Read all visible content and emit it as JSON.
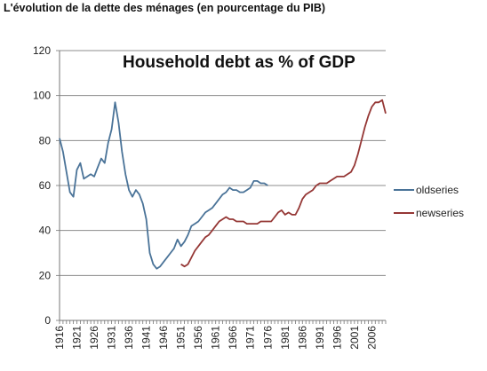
{
  "caption": "L'évolution de la dette des ménages (en pourcentage du PIB)",
  "colors": {
    "oldseries": "#4a7398",
    "newseries": "#953735",
    "grid": "#8c8c8c",
    "axis": "#777777"
  },
  "chart_data": {
    "type": "line",
    "title": "Household debt as % of GDP",
    "xlabel": "",
    "ylabel": "",
    "xlim": [
      1916,
      2010
    ],
    "ylim": [
      0,
      120
    ],
    "yticks": [
      0,
      20,
      40,
      60,
      80,
      100,
      120
    ],
    "xticks": [
      1916,
      1921,
      1926,
      1931,
      1936,
      1941,
      1946,
      1951,
      1956,
      1961,
      1966,
      1971,
      1976,
      1981,
      1986,
      1991,
      1996,
      2001,
      2006
    ],
    "grid": "horizontal",
    "legend": "right",
    "series": [
      {
        "name": "oldseries",
        "x": [
          1916,
          1917,
          1918,
          1919,
          1920,
          1921,
          1922,
          1923,
          1924,
          1925,
          1926,
          1927,
          1928,
          1929,
          1930,
          1931,
          1932,
          1933,
          1934,
          1935,
          1936,
          1937,
          1938,
          1939,
          1940,
          1941,
          1942,
          1943,
          1944,
          1945,
          1946,
          1947,
          1948,
          1949,
          1950,
          1951,
          1952,
          1953,
          1954,
          1955,
          1956,
          1957,
          1958,
          1959,
          1960,
          1961,
          1962,
          1963,
          1964,
          1965,
          1966,
          1967,
          1968,
          1969,
          1970,
          1971,
          1972,
          1973,
          1974,
          1975,
          1976
        ],
        "values": [
          81,
          75,
          66,
          57,
          55,
          67,
          70,
          63,
          64,
          65,
          64,
          68,
          72,
          70,
          79,
          85,
          97,
          88,
          75,
          65,
          58,
          55,
          58,
          56,
          52,
          45,
          30,
          25,
          23,
          24,
          26,
          28,
          30,
          32,
          36,
          33,
          35,
          38,
          42,
          43,
          44,
          46,
          48,
          49,
          50,
          52,
          54,
          56,
          57,
          59,
          58,
          58,
          57,
          57,
          58,
          59,
          62,
          62,
          61,
          61,
          60
        ]
      },
      {
        "name": "newseries",
        "x": [
          1951,
          1952,
          1953,
          1954,
          1955,
          1956,
          1957,
          1958,
          1959,
          1960,
          1961,
          1962,
          1963,
          1964,
          1965,
          1966,
          1967,
          1968,
          1969,
          1970,
          1971,
          1972,
          1973,
          1974,
          1975,
          1976,
          1977,
          1978,
          1979,
          1980,
          1981,
          1982,
          1983,
          1984,
          1985,
          1986,
          1987,
          1988,
          1989,
          1990,
          1991,
          1992,
          1993,
          1994,
          1995,
          1996,
          1997,
          1998,
          1999,
          2000,
          2001,
          2002,
          2003,
          2004,
          2005,
          2006,
          2007,
          2008,
          2009,
          2010
        ],
        "values": [
          25,
          24,
          25,
          28,
          31,
          33,
          35,
          37,
          38,
          40,
          42,
          44,
          45,
          46,
          45,
          45,
          44,
          44,
          44,
          43,
          43,
          43,
          43,
          44,
          44,
          44,
          44,
          46,
          48,
          49,
          47,
          48,
          47,
          47,
          50,
          54,
          56,
          57,
          58,
          60,
          61,
          61,
          61,
          62,
          63,
          64,
          64,
          64,
          65,
          66,
          69,
          74,
          80,
          86,
          91,
          95,
          97,
          97,
          98,
          92
        ]
      }
    ]
  }
}
